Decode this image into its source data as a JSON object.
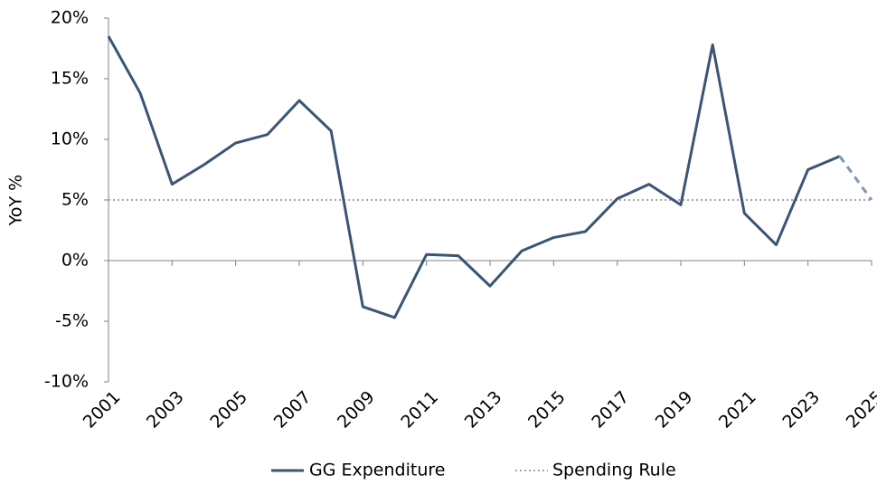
{
  "chart_data": {
    "type": "line",
    "y_label": "YoY %",
    "x": [
      2001,
      2002,
      2003,
      2004,
      2005,
      2006,
      2007,
      2008,
      2009,
      2010,
      2011,
      2012,
      2013,
      2014,
      2015,
      2016,
      2017,
      2018,
      2019,
      2020,
      2021,
      2022,
      2023,
      2024,
      2025
    ],
    "series": [
      {
        "name": "GG Expenditure",
        "color": "#3b5576",
        "forecast_color": "#7f97b5",
        "dashed_from_x": 2024,
        "values": [
          18.5,
          13.8,
          6.3,
          7.9,
          9.7,
          10.4,
          13.2,
          10.7,
          -3.8,
          -4.7,
          0.5,
          0.4,
          -2.1,
          0.8,
          1.9,
          2.4,
          5.1,
          6.3,
          4.6,
          17.8,
          3.9,
          1.3,
          7.5,
          8.6,
          5.0
        ]
      }
    ],
    "reference_lines": [
      {
        "name": "Spending Rule",
        "value": 5,
        "color": "#a6a6a6",
        "style": "dotted"
      }
    ],
    "xlim": [
      2001,
      2025
    ],
    "xticks": [
      2001,
      2003,
      2005,
      2007,
      2009,
      2011,
      2013,
      2015,
      2017,
      2019,
      2021,
      2023,
      2025
    ],
    "ylim": [
      -10,
      20
    ],
    "yticks": [
      {
        "value": -10,
        "label": "-10%"
      },
      {
        "value": -5,
        "label": "-5%"
      },
      {
        "value": 0,
        "label": "0%"
      },
      {
        "value": 5,
        "label": "5%"
      },
      {
        "value": 10,
        "label": "10%"
      },
      {
        "value": 15,
        "label": "15%"
      },
      {
        "value": 20,
        "label": "20%"
      }
    ],
    "grid": false,
    "legend": "bottom"
  }
}
